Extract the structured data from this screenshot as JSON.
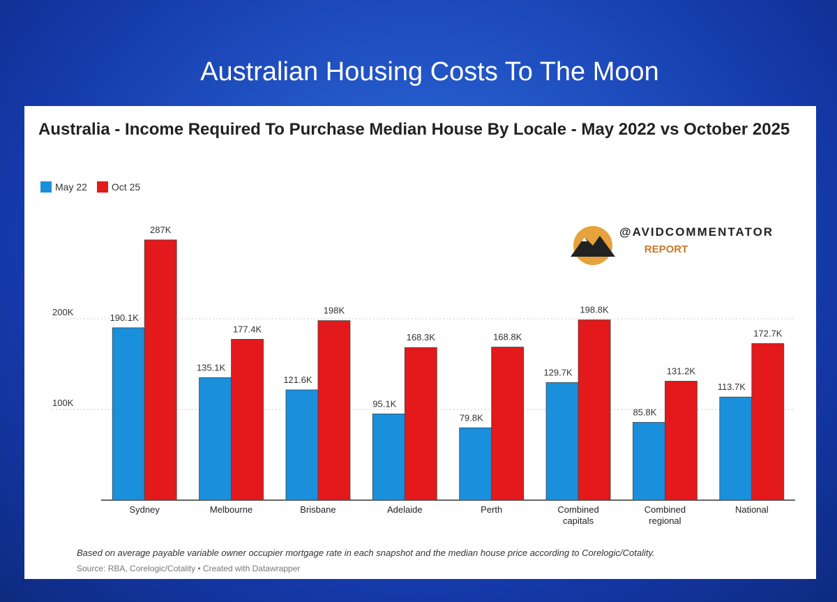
{
  "header": "Australian Housing Costs To The Moon",
  "watermark": {
    "handle": "@AVIDCOMMENTATOR",
    "tag": "REPORT"
  },
  "chart_data": {
    "type": "bar",
    "title": "Australia - Income Required To Purchase Median House By Locale - May 2022 vs October 2025",
    "categories": [
      "Sydney",
      "Melbourne",
      "Brisbane",
      "Adelaide",
      "Perth",
      "Combined capitals",
      "Combined regional",
      "National"
    ],
    "series": [
      {
        "name": "May 22",
        "color": "#1a8fdc",
        "values": [
          190.1,
          135.1,
          121.6,
          95.1,
          79.8,
          129.7,
          85.8,
          113.7
        ],
        "value_labels": [
          "190.1K",
          "135.1K",
          "121.6K",
          "95.1K",
          "79.8K",
          "129.7K",
          "85.8K",
          "113.7K"
        ]
      },
      {
        "name": "Oct 25",
        "color": "#e3191c",
        "values": [
          287,
          177.4,
          198,
          168.3,
          168.8,
          198.8,
          131.2,
          172.7
        ],
        "value_labels": [
          "287K",
          "177.4K",
          "198K",
          "168.3K",
          "168.8K",
          "198.8K",
          "131.2K",
          "172.7K"
        ]
      }
    ],
    "ylim": [
      0,
      300
    ],
    "yticks": [
      {
        "value": 100,
        "label": "100K"
      },
      {
        "value": 200,
        "label": "200K"
      }
    ],
    "grid": true,
    "legend": "top-left",
    "note": "Based on average payable variable owner occupier mortgage rate in each snapshot and the median house price according to Corelogic/Cotality.",
    "source": "Source: RBA, Corelogic/Cotality • Created with Datawrapper"
  }
}
